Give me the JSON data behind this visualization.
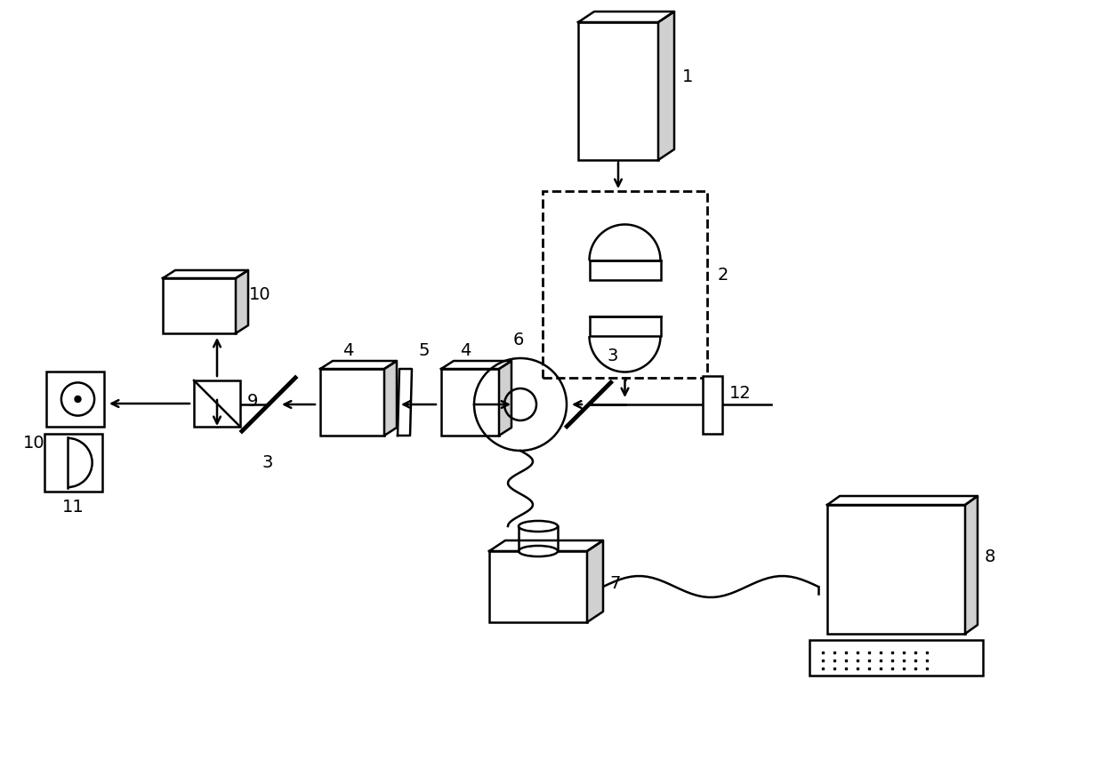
{
  "bg": "#ffffff",
  "lc": "#000000",
  "lw": 1.8,
  "lw_thick": 3.5,
  "fig_w": 12.4,
  "fig_h": 8.64,
  "dpi": 100
}
